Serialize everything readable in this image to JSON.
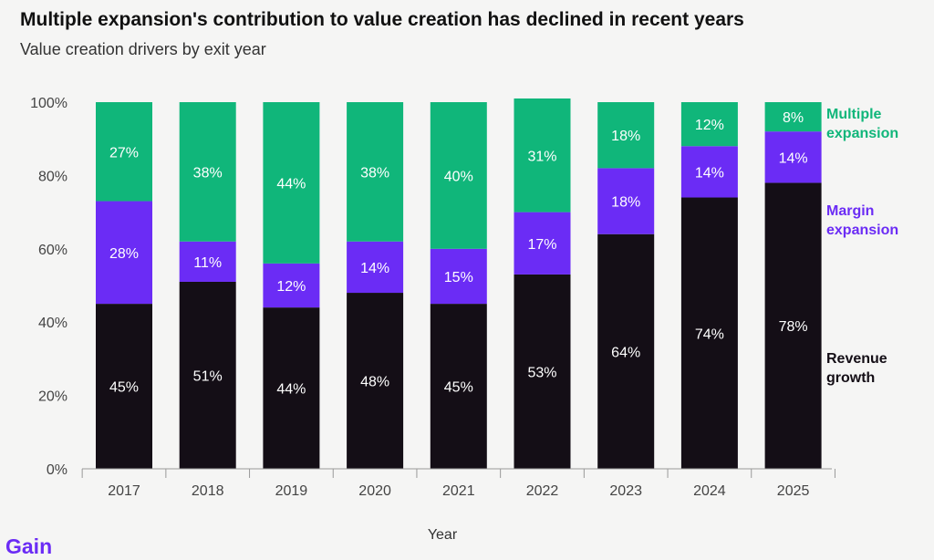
{
  "title": "Multiple expansion's contribution to value creation has declined in recent years",
  "subtitle": "Value creation drivers by exit year",
  "logo": "Gain",
  "colors": {
    "revenue": "#140e16",
    "margin": "#6b2cf5",
    "multiple": "#10b67a",
    "logo": "#6b2cf5"
  },
  "chart_data": {
    "type": "bar",
    "stacked": true,
    "categories": [
      "2017",
      "2018",
      "2019",
      "2020",
      "2021",
      "2022",
      "2023",
      "2024",
      "2025"
    ],
    "series": [
      {
        "name": "Revenue growth",
        "values": [
          45,
          51,
          44,
          48,
          45,
          53,
          64,
          74,
          78
        ]
      },
      {
        "name": "Margin expansion",
        "values": [
          28,
          11,
          12,
          14,
          15,
          17,
          18,
          14,
          14
        ]
      },
      {
        "name": "Multiple expansion",
        "values": [
          27,
          38,
          44,
          38,
          40,
          31,
          18,
          12,
          8
        ]
      }
    ],
    "legend_lines": [
      [
        "Revenue",
        "growth"
      ],
      [
        "Margin",
        "expansion"
      ],
      [
        "Multiple",
        "expansion"
      ]
    ],
    "xlabel": "Year",
    "ylabel": "",
    "ylim": [
      0,
      100
    ],
    "yticks": [
      "0%",
      "20%",
      "40%",
      "60%",
      "80%",
      "100%"
    ],
    "legend_position": "right",
    "grid": false
  }
}
